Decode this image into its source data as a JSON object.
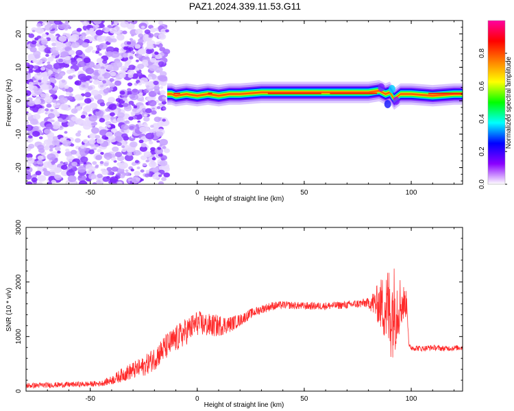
{
  "title": "PAZ1.2024.339.11.53.G11",
  "chart_data": [
    {
      "type": "heatmap",
      "title": "PAZ1.2024.339.11.53.G11",
      "xlabel": "Height of straight line (km)",
      "ylabel": "Frequency (Hz)",
      "xlim": [
        -80,
        124
      ],
      "ylim": [
        -25,
        24
      ],
      "xticks": [
        -50,
        0,
        50,
        100
      ],
      "yticks": [
        -20,
        -10,
        0,
        10,
        20
      ],
      "noise_region_x": [
        -80,
        -14
      ],
      "ridge": {
        "x": [
          -14,
          -12,
          -10,
          -5,
          0,
          5,
          10,
          15,
          20,
          30,
          40,
          50,
          60,
          70,
          80,
          85,
          88,
          90,
          92,
          95,
          100,
          110,
          120,
          124
        ],
        "freq": [
          2,
          2,
          1.5,
          2,
          1.5,
          2,
          1.5,
          2,
          2,
          2.5,
          2.5,
          2.5,
          2.5,
          2.5,
          2.5,
          3,
          2,
          2.5,
          0.5,
          2,
          2,
          1.5,
          2,
          2
        ]
      },
      "colorbar": {
        "label": "Normalized spectral amplitude",
        "ticks": [
          "0.0",
          "0.2",
          "0.4",
          "0.6",
          "0.8"
        ],
        "range": [
          0,
          1
        ],
        "colors": [
          "#ffffff",
          "#8a00ff",
          "#0000ff",
          "#00ffff",
          "#00ff00",
          "#ffff00",
          "#ff8000",
          "#ff0000",
          "#ff00a0"
        ]
      }
    },
    {
      "type": "line",
      "xlabel": "Height of straight line (km)",
      "ylabel": "SNR (10 * v/v)",
      "xlim": [
        -80,
        124
      ],
      "ylim": [
        0,
        3000
      ],
      "xticks": [
        -50,
        0,
        50,
        100
      ],
      "yticks": [
        0,
        1000,
        2000,
        3000
      ],
      "color": "#ff2a2a",
      "x": [
        -80,
        -70,
        -60,
        -50,
        -45,
        -40,
        -35,
        -30,
        -25,
        -20,
        -15,
        -10,
        -5,
        0,
        5,
        10,
        15,
        20,
        25,
        30,
        35,
        40,
        50,
        60,
        70,
        80,
        85,
        88,
        90,
        92,
        95,
        98,
        99,
        100,
        105,
        110,
        115,
        120,
        124
      ],
      "y": [
        100,
        110,
        120,
        130,
        140,
        200,
        300,
        380,
        450,
        600,
        800,
        950,
        1100,
        1250,
        1200,
        1200,
        1220,
        1300,
        1420,
        1500,
        1560,
        1580,
        1560,
        1560,
        1580,
        1620,
        1600,
        1550,
        1450,
        1500,
        1620,
        1600,
        800,
        800,
        780,
        800,
        780,
        790,
        800
      ],
      "noise": [
        50,
        50,
        50,
        50,
        50,
        80,
        130,
        160,
        180,
        220,
        240,
        250,
        250,
        230,
        220,
        200,
        150,
        110,
        90,
        80,
        80,
        70,
        70,
        70,
        70,
        90,
        400,
        700,
        900,
        850,
        500,
        200,
        60,
        60,
        50,
        50,
        50,
        50,
        50
      ]
    }
  ]
}
